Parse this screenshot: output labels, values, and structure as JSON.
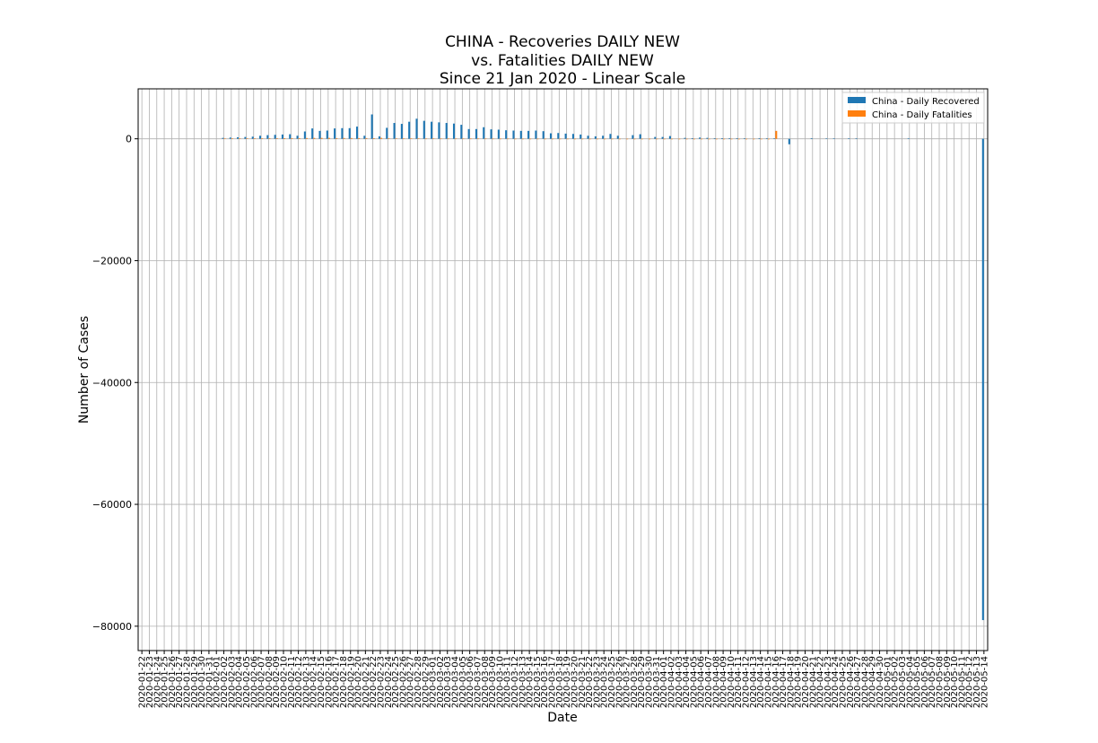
{
  "chart_data": {
    "type": "bar",
    "title_lines": [
      "CHINA - Recoveries DAILY NEW",
      "vs. Fatalities DAILY NEW",
      "Since 21 Jan 2020 - Linear Scale"
    ],
    "xlabel": "Date",
    "ylabel": "Number of Cases",
    "ylim": [
      -84000,
      8200
    ],
    "yticks": [
      0,
      -20000,
      -40000,
      -60000,
      -80000
    ],
    "ytick_labels": [
      "0",
      "−20000",
      "−40000",
      "−60000",
      "−80000"
    ],
    "grid": true,
    "legend_position": "top-right",
    "colors": {
      "recovered": "#1f77b4",
      "fatalities": "#ff7f0e"
    },
    "categories": [
      "2020-01-22",
      "2020-01-23",
      "2020-01-24",
      "2020-01-25",
      "2020-01-26",
      "2020-01-27",
      "2020-01-28",
      "2020-01-29",
      "2020-01-30",
      "2020-01-31",
      "2020-02-01",
      "2020-02-02",
      "2020-02-03",
      "2020-02-04",
      "2020-02-05",
      "2020-02-06",
      "2020-02-07",
      "2020-02-08",
      "2020-02-09",
      "2020-02-10",
      "2020-02-11",
      "2020-02-12",
      "2020-02-13",
      "2020-02-14",
      "2020-02-15",
      "2020-02-16",
      "2020-02-17",
      "2020-02-18",
      "2020-02-19",
      "2020-02-20",
      "2020-02-21",
      "2020-02-22",
      "2020-02-23",
      "2020-02-24",
      "2020-02-25",
      "2020-02-26",
      "2020-02-27",
      "2020-02-28",
      "2020-02-29",
      "2020-03-01",
      "2020-03-02",
      "2020-03-03",
      "2020-03-04",
      "2020-03-05",
      "2020-03-06",
      "2020-03-07",
      "2020-03-08",
      "2020-03-09",
      "2020-03-10",
      "2020-03-11",
      "2020-03-12",
      "2020-03-13",
      "2020-03-14",
      "2020-03-15",
      "2020-03-16",
      "2020-03-17",
      "2020-03-18",
      "2020-03-19",
      "2020-03-20",
      "2020-03-21",
      "2020-03-22",
      "2020-03-23",
      "2020-03-24",
      "2020-03-25",
      "2020-03-26",
      "2020-03-27",
      "2020-03-28",
      "2020-03-29",
      "2020-03-30",
      "2020-03-31",
      "2020-04-01",
      "2020-04-02",
      "2020-04-03",
      "2020-04-04",
      "2020-04-05",
      "2020-04-06",
      "2020-04-07",
      "2020-04-08",
      "2020-04-09",
      "2020-04-10",
      "2020-04-11",
      "2020-04-12",
      "2020-04-13",
      "2020-04-14",
      "2020-04-15",
      "2020-04-16",
      "2020-04-17",
      "2020-04-18",
      "2020-04-19",
      "2020-04-20",
      "2020-04-21",
      "2020-04-22",
      "2020-04-23",
      "2020-04-24",
      "2020-04-25",
      "2020-04-26",
      "2020-04-27",
      "2020-04-28",
      "2020-04-29",
      "2020-04-30",
      "2020-05-01",
      "2020-05-02",
      "2020-05-03",
      "2020-05-04",
      "2020-05-05",
      "2020-05-06",
      "2020-05-07",
      "2020-05-08",
      "2020-05-09",
      "2020-05-10",
      "2020-05-11",
      "2020-05-12",
      "2020-05-13",
      "2020-05-14"
    ],
    "series": [
      {
        "name": "China - Daily Recovered",
        "values": [
          0,
          0,
          0,
          0,
          0,
          0,
          0,
          0,
          0,
          0,
          0,
          150,
          200,
          250,
          300,
          350,
          500,
          600,
          650,
          700,
          750,
          500,
          1200,
          1700,
          1300,
          1350,
          1700,
          1750,
          1750,
          2000,
          500,
          4000,
          400,
          1800,
          2600,
          2450,
          2800,
          3300,
          2950,
          2800,
          2700,
          2600,
          2500,
          2300,
          1600,
          1600,
          1900,
          1550,
          1500,
          1400,
          1350,
          1300,
          1300,
          1350,
          1250,
          900,
          950,
          850,
          800,
          700,
          500,
          400,
          500,
          800,
          500,
          0,
          600,
          750,
          0,
          300,
          300,
          450,
          0,
          150,
          100,
          200,
          150,
          100,
          100,
          100,
          100,
          80,
          0,
          100,
          80,
          80,
          0,
          -900,
          0,
          0,
          100,
          0,
          50,
          50,
          0,
          70,
          70,
          0,
          0,
          0,
          0,
          0,
          0,
          50,
          0,
          0,
          0,
          0,
          0,
          0,
          0,
          0,
          0,
          -79000
        ]
      },
      {
        "name": "China - Daily Fatalities",
        "values": [
          0,
          0,
          0,
          0,
          0,
          0,
          0,
          0,
          0,
          0,
          0,
          40,
          60,
          65,
          70,
          70,
          80,
          85,
          95,
          100,
          110,
          100,
          120,
          140,
          145,
          140,
          110,
          130,
          120,
          110,
          115,
          100,
          150,
          70,
          50,
          40,
          45,
          40,
          30,
          40,
          30,
          30,
          30,
          30,
          30,
          30,
          30,
          20,
          20,
          20,
          10,
          10,
          10,
          10,
          10,
          10,
          10,
          8,
          7,
          7,
          5,
          5,
          5,
          5,
          5,
          4,
          4,
          4,
          4,
          4,
          3,
          3,
          3,
          2,
          2,
          2,
          2,
          2,
          2,
          2,
          2,
          2,
          2,
          2,
          2,
          1300,
          0,
          0,
          0,
          0,
          0,
          0,
          0,
          0,
          0,
          0,
          0,
          0,
          0,
          0,
          0,
          0,
          0,
          0,
          0,
          0,
          0,
          0,
          0,
          0,
          0,
          0,
          0,
          0
        ]
      }
    ]
  }
}
